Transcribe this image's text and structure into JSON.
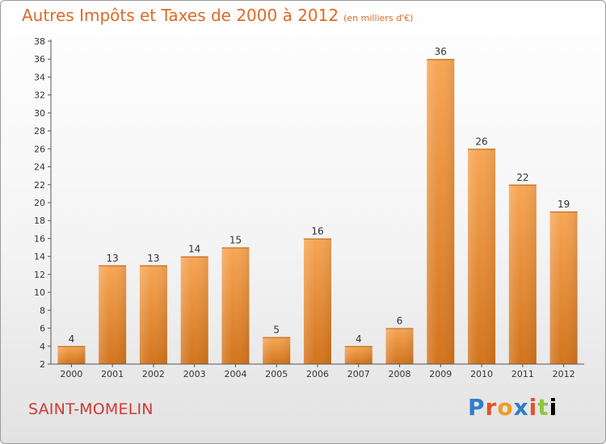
{
  "header": {
    "title": "Autres Impôts et Taxes de 2000 à 2012",
    "unit": "(en milliers d'€)"
  },
  "footer": {
    "commune": "SAINT-MOMELIN",
    "logo_text": "Proxiti"
  },
  "colors": {
    "bar_light": "#f7a655",
    "bar_dark": "#d2741c",
    "title": "#de6a26",
    "commune": "#cf3a35"
  },
  "chart_data": {
    "type": "bar",
    "title": "Autres Impôts et Taxes de 2000 à 2012",
    "subtitle": "(en milliers d'€)",
    "xlabel": "",
    "ylabel": "",
    "categories": [
      "2000",
      "2001",
      "2002",
      "2003",
      "2004",
      "2005",
      "2006",
      "2007",
      "2008",
      "2009",
      "2010",
      "2011",
      "2012"
    ],
    "values": [
      4,
      13,
      13,
      14,
      15,
      5,
      16,
      4,
      6,
      36,
      26,
      22,
      19
    ],
    "ylim": [
      2,
      38
    ],
    "yticks": [
      2,
      4,
      6,
      8,
      10,
      12,
      14,
      16,
      18,
      20,
      22,
      24,
      26,
      28,
      30,
      32,
      34,
      36,
      38
    ],
    "grid": false,
    "legend": "none"
  }
}
